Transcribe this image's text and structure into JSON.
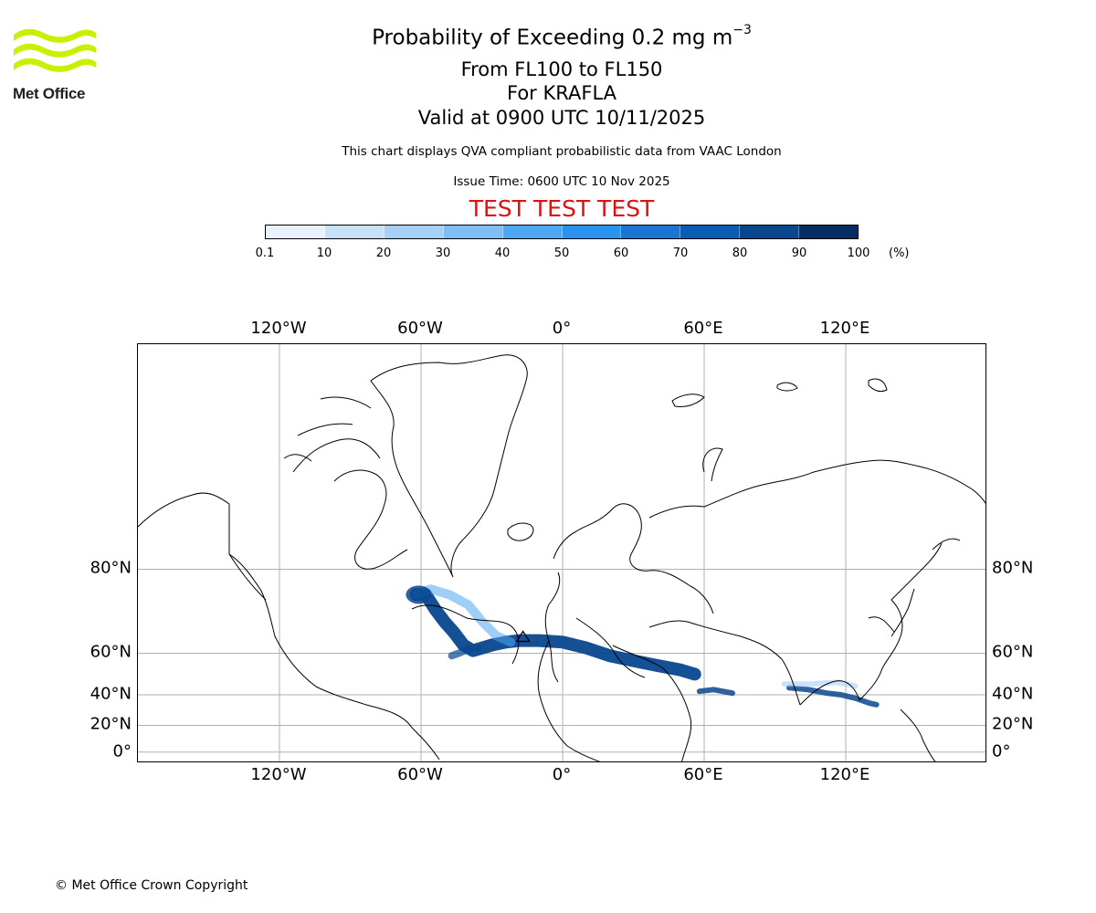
{
  "logo": {
    "name": "Met Office",
    "color": "#c8f000"
  },
  "title": {
    "main": "Probability of Exceeding 0.2 mg m",
    "main_unit_exponent": "−3",
    "levels": "From FL100 to FL150",
    "volcano": "For KRAFLA",
    "valid": "Valid at 0900 UTC 10/11/2025",
    "compliance_note": "This chart displays QVA compliant probabilistic data from VAAC London",
    "issue_time": "Issue Time: 0600 UTC 10 Nov 2025",
    "test_banner": "TEST TEST TEST"
  },
  "colorbar": {
    "ticks": [
      "0.1",
      "10",
      "20",
      "30",
      "40",
      "50",
      "60",
      "70",
      "80",
      "90",
      "100"
    ],
    "unit": "(%)",
    "colors": [
      "#e8f2fc",
      "#c7e1f8",
      "#a7d0f6",
      "#7fbef5",
      "#4ea7f4",
      "#2a92ef",
      "#1a76d4",
      "#0b5db3",
      "#08468e",
      "#052d63"
    ]
  },
  "map": {
    "lon_labels": [
      "120°W",
      "60°W",
      "0°",
      "60°E",
      "120°E"
    ],
    "lon_values": [
      -120,
      -60,
      0,
      60,
      120
    ],
    "lat_labels": [
      "80°N",
      "60°N",
      "40°N",
      "20°N",
      "0°"
    ],
    "lat_values": [
      80,
      60,
      40,
      20,
      0
    ],
    "lon_range": [
      -180,
      180
    ],
    "lat_range": [
      -8.5,
      89.5
    ],
    "projection": "Mercator",
    "volcano_marker": "Krafla",
    "plume_color": "#08468e"
  },
  "footer": {
    "copyright": "© Met Office Crown Copyright"
  }
}
